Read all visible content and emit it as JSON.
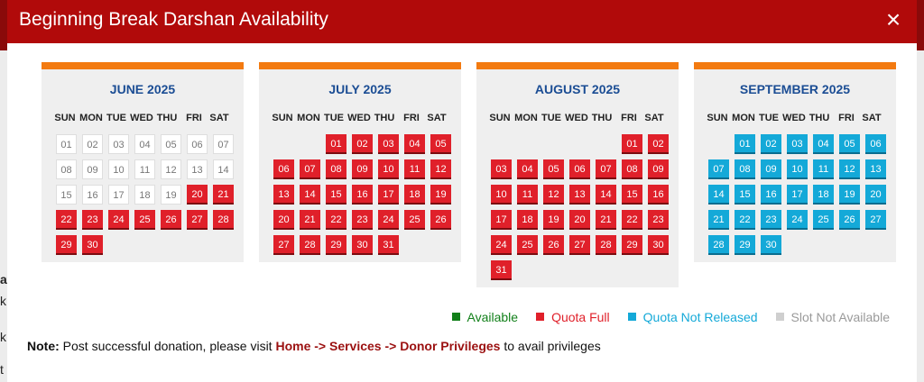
{
  "modal": {
    "title": "Beginning Break Darshan Availability",
    "close_symbol": "×"
  },
  "weekdays": [
    "SUN",
    "MON",
    "TUE",
    "WED",
    "THU",
    "FRI",
    "SAT"
  ],
  "months": [
    {
      "name": "JUNE 2025",
      "start_weekday": 0,
      "days": [
        "01",
        "02",
        "03",
        "04",
        "05",
        "06",
        "07",
        "08",
        "09",
        "10",
        "11",
        "12",
        "13",
        "14",
        "15",
        "16",
        "17",
        "18",
        "19",
        "20",
        "21",
        "22",
        "23",
        "24",
        "25",
        "26",
        "27",
        "28",
        "29",
        "30"
      ],
      "status": [
        "na",
        "na",
        "na",
        "na",
        "na",
        "na",
        "na",
        "na",
        "na",
        "na",
        "na",
        "na",
        "na",
        "na",
        "na",
        "na",
        "na",
        "na",
        "na",
        "full",
        "full",
        "full",
        "full",
        "full",
        "full",
        "full",
        "full",
        "full",
        "full",
        "full"
      ]
    },
    {
      "name": "JULY 2025",
      "start_weekday": 2,
      "days": [
        "01",
        "02",
        "03",
        "04",
        "05",
        "06",
        "07",
        "08",
        "09",
        "10",
        "11",
        "12",
        "13",
        "14",
        "15",
        "16",
        "17",
        "18",
        "19",
        "20",
        "21",
        "22",
        "23",
        "24",
        "25",
        "26",
        "27",
        "28",
        "29",
        "30",
        "31"
      ],
      "status": [
        "full",
        "full",
        "full",
        "full",
        "full",
        "full",
        "full",
        "full",
        "full",
        "full",
        "full",
        "full",
        "full",
        "full",
        "full",
        "full",
        "full",
        "full",
        "full",
        "full",
        "full",
        "full",
        "full",
        "full",
        "full",
        "full",
        "full",
        "full",
        "full",
        "full",
        "full"
      ]
    },
    {
      "name": "AUGUST 2025",
      "start_weekday": 5,
      "days": [
        "01",
        "02",
        "03",
        "04",
        "05",
        "06",
        "07",
        "08",
        "09",
        "10",
        "11",
        "12",
        "13",
        "14",
        "15",
        "16",
        "17",
        "18",
        "19",
        "20",
        "21",
        "22",
        "23",
        "24",
        "25",
        "26",
        "27",
        "28",
        "29",
        "30",
        "31"
      ],
      "status": [
        "full",
        "full",
        "full",
        "full",
        "full",
        "full",
        "full",
        "full",
        "full",
        "full",
        "full",
        "full",
        "full",
        "full",
        "full",
        "full",
        "full",
        "full",
        "full",
        "full",
        "full",
        "full",
        "full",
        "full",
        "full",
        "full",
        "full",
        "full",
        "full",
        "full",
        "full"
      ]
    },
    {
      "name": "SEPTEMBER 2025",
      "start_weekday": 1,
      "days": [
        "01",
        "02",
        "03",
        "04",
        "05",
        "06",
        "07",
        "08",
        "09",
        "10",
        "11",
        "12",
        "13",
        "14",
        "15",
        "16",
        "17",
        "18",
        "19",
        "20",
        "21",
        "22",
        "23",
        "24",
        "25",
        "26",
        "27",
        "28",
        "29",
        "30"
      ],
      "status": [
        "notrel",
        "notrel",
        "notrel",
        "notrel",
        "notrel",
        "notrel",
        "notrel",
        "notrel",
        "notrel",
        "notrel",
        "notrel",
        "notrel",
        "notrel",
        "notrel",
        "notrel",
        "notrel",
        "notrel",
        "notrel",
        "notrel",
        "notrel",
        "notrel",
        "notrel",
        "notrel",
        "notrel",
        "notrel",
        "notrel",
        "notrel",
        "notrel",
        "notrel",
        "notrel"
      ]
    }
  ],
  "legend": [
    {
      "label": "Available",
      "color": "#12801a",
      "text_color": "#12801a"
    },
    {
      "label": "Quota Full",
      "color": "#e0202a",
      "text_color": "#e0202a"
    },
    {
      "label": "Quota Not Released",
      "color": "#14a9d8",
      "text_color": "#14a9d8"
    },
    {
      "label": "Slot Not Available",
      "color": "#cfcfcf",
      "text_color": "#9a9a9a"
    }
  ],
  "note": {
    "prefix": "Note:",
    "text": " Post successful donation, please visit ",
    "link": "Home -> Services -> Donor Privileges",
    "suffix": " to avail privileges"
  },
  "background_fragments": [
    "at",
    "k",
    "k",
    "t ("
  ]
}
